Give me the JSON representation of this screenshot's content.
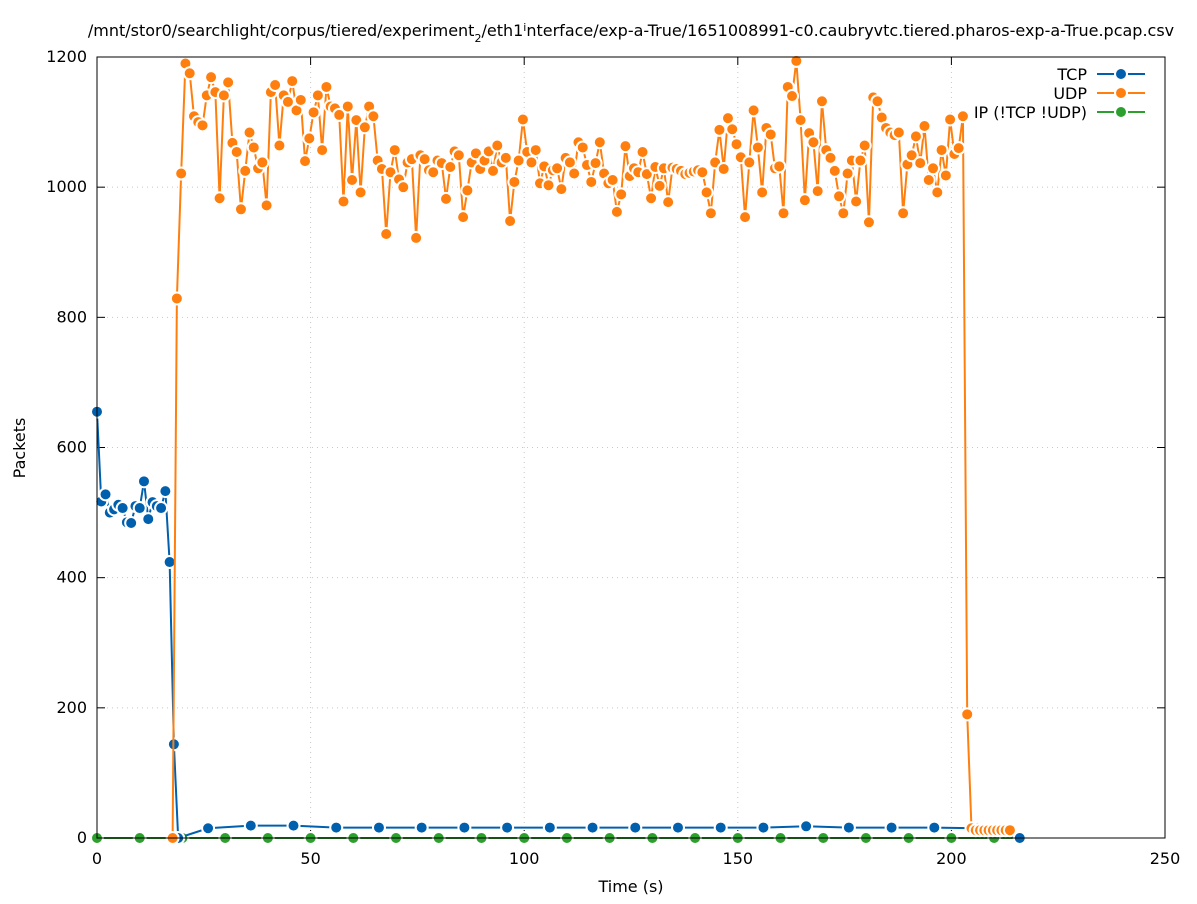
{
  "chart_data": {
    "type": "line",
    "title": "/mnt/stor0/searchlight/corpus/tiered/experiment_2/eth1_interface/exp-a-True/1651008991-c0.caubryvtc.tiered.pharos-exp-a-True.pcap.csv",
    "title_parts": [
      "/mnt/stor0/searchlight/corpus/tiered/experiment",
      "2",
      "/eth1",
      "i",
      "nterface/exp-a-True/1651008991-c0.caubryvtc.tiered.pharos-exp-a-True.pcap.csv"
    ],
    "xlabel": "Time (s)",
    "ylabel": "Packets",
    "xlim": [
      0,
      250
    ],
    "ylim": [
      0,
      1200
    ],
    "xticks": [
      0,
      50,
      100,
      150,
      200,
      250
    ],
    "yticks": [
      0,
      200,
      400,
      600,
      800,
      1000,
      1200
    ],
    "grid": true,
    "legend_position": "top-right",
    "series": [
      {
        "name": "TCP",
        "color": "#0060ad",
        "x": [
          0,
          1,
          2,
          3,
          4,
          5,
          6,
          7,
          8,
          9,
          10,
          11,
          12,
          13,
          14,
          15,
          16,
          17,
          18,
          19,
          26,
          36,
          46,
          56,
          66,
          76,
          86,
          96,
          106,
          116,
          126,
          136,
          146,
          156,
          166,
          176,
          186,
          196,
          206,
          216
        ],
        "values": [
          655,
          517,
          528,
          500,
          505,
          512,
          507,
          485,
          484,
          510,
          507,
          548,
          490,
          516,
          510,
          507,
          533,
          424,
          144,
          0,
          15,
          19,
          19,
          16,
          16,
          16,
          16,
          16,
          16,
          16,
          16,
          16,
          16,
          16,
          18,
          16,
          16,
          16,
          15,
          0
        ]
      },
      {
        "name": "UDP",
        "color": "#ff7f0e",
        "x_start": 17.7,
        "x_step": 1,
        "values": [
          0,
          829,
          1021,
          1190,
          1175,
          1109,
          1100,
          1095,
          1141,
          1169,
          1146,
          983,
          1141,
          1161,
          1068,
          1054,
          966,
          1025,
          1084,
          1061,
          1029,
          1038,
          972,
          1146,
          1157,
          1064,
          1141,
          1131,
          1163,
          1118,
          1134,
          1040,
          1075,
          1115,
          1141,
          1057,
          1154,
          1124,
          1121,
          1111,
          978,
          1124,
          1011,
          1103,
          992,
          1092,
          1124,
          1109,
          1041,
          1028,
          928,
          1023,
          1057,
          1012,
          1000,
          1038,
          1043,
          922,
          1049,
          1043,
          1026,
          1023,
          1041,
          1037,
          982,
          1031,
          1055,
          1049,
          954,
          995,
          1038,
          1052,
          1028,
          1041,
          1055,
          1025,
          1064,
          1038,
          1045,
          948,
          1008,
          1041,
          1104,
          1054,
          1038,
          1057,
          1006,
          1032,
          1003,
          1026,
          1029,
          997,
          1045,
          1038,
          1021,
          1069,
          1061,
          1034,
          1008,
          1037,
          1069,
          1021,
          1006,
          1011,
          962,
          989,
          1063,
          1017,
          1029,
          1023,
          1054,
          1020,
          983,
          1031,
          1002,
          1029,
          977,
          1030,
          1028,
          1025,
          1020,
          1022,
          1024,
          1026,
          1023,
          992,
          960,
          1038,
          1088,
          1028,
          1106,
          1089,
          1066,
          1046,
          954,
          1038,
          1118,
          1061,
          992,
          1091,
          1081,
          1029,
          1032,
          960,
          1154,
          1140,
          1194,
          1103,
          980,
          1083,
          1069,
          994,
          1132,
          1057,
          1045,
          1025,
          986,
          960,
          1021,
          1041,
          978,
          1041,
          1064,
          946,
          1138,
          1132,
          1107,
          1091,
          1084,
          1080,
          1084,
          960,
          1035,
          1049,
          1078,
          1037,
          1094,
          1011,
          1029,
          992,
          1057,
          1018,
          1104,
          1051,
          1060,
          1109,
          190,
          15,
          12,
          12,
          12,
          12,
          12,
          12,
          12,
          12,
          12
        ]
      },
      {
        "name": "IP (!TCP  !UDP)",
        "color": "#2ca02c",
        "x": [
          0,
          10,
          20,
          30,
          40,
          50,
          60,
          70,
          80,
          90,
          100,
          110,
          120,
          130,
          140,
          150,
          160,
          170,
          180,
          190,
          200,
          210,
          216
        ],
        "values": [
          0,
          0,
          0,
          0,
          0,
          0,
          0,
          0,
          0,
          0,
          0,
          0,
          0,
          0,
          0,
          0,
          0,
          0,
          0,
          0,
          0,
          0,
          0
        ]
      }
    ]
  }
}
